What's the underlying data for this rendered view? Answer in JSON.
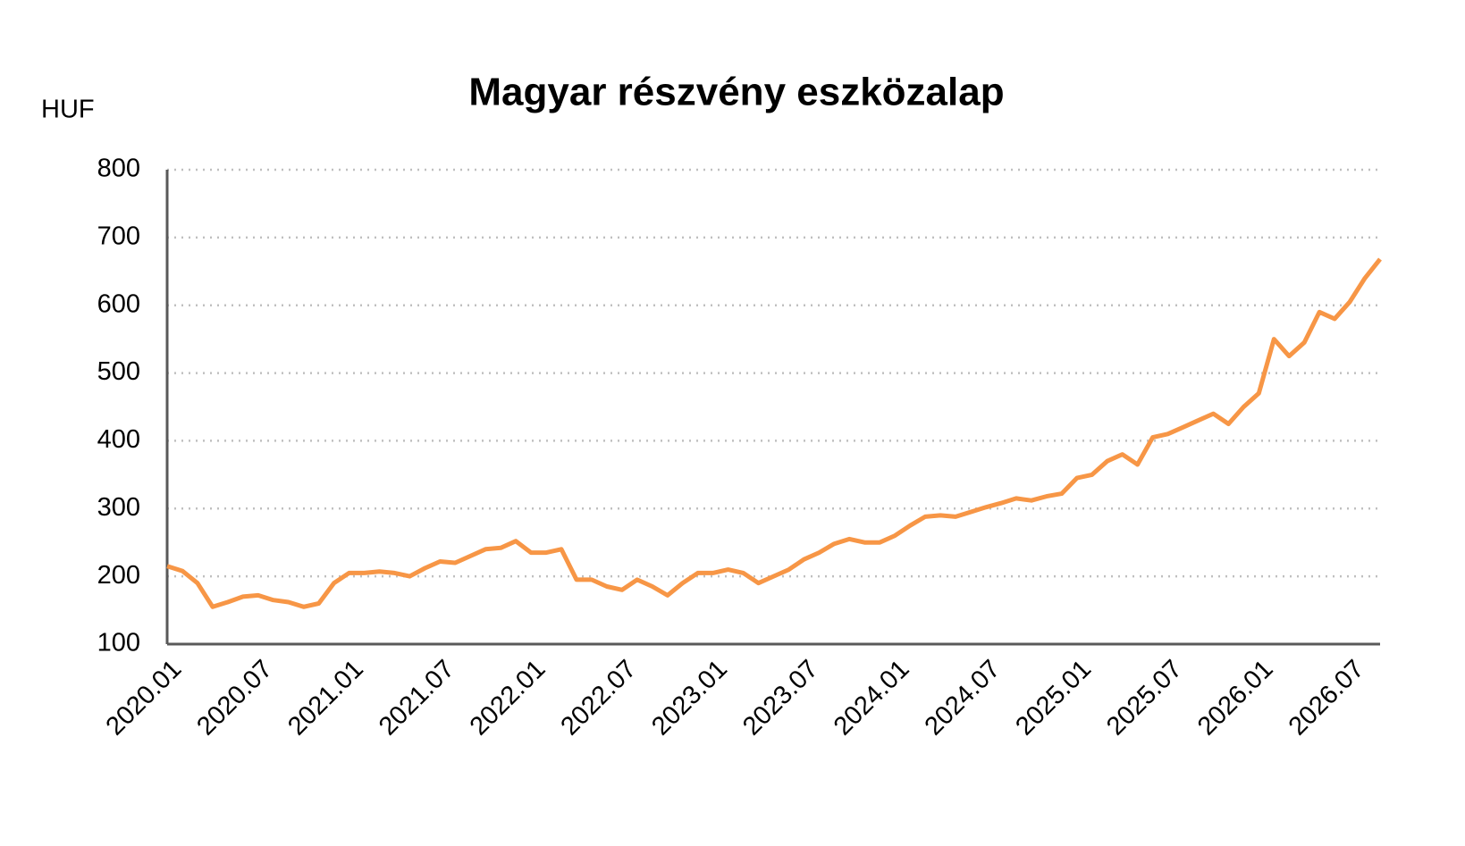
{
  "chart_data": {
    "type": "line",
    "title": "Magyar részvény eszközalap",
    "y_label": "HUF",
    "x": [
      "2020.01",
      "2020.02",
      "2020.03",
      "2020.04",
      "2020.05",
      "2020.06",
      "2020.07",
      "2020.08",
      "2020.09",
      "2020.10",
      "2020.11",
      "2020.12",
      "2021.01",
      "2021.02",
      "2021.03",
      "2021.04",
      "2021.05",
      "2021.06",
      "2021.07",
      "2021.08",
      "2021.09",
      "2021.10",
      "2021.11",
      "2021.12",
      "2022.01",
      "2022.02",
      "2022.03",
      "2022.04",
      "2022.05",
      "2022.06",
      "2022.07",
      "2022.08",
      "2022.09",
      "2022.10",
      "2022.11",
      "2022.12",
      "2023.01",
      "2023.02",
      "2023.03",
      "2023.04",
      "2023.05",
      "2023.06",
      "2023.07",
      "2023.08",
      "2023.09",
      "2023.10",
      "2023.11",
      "2023.12",
      "2024.01",
      "2024.02",
      "2024.03",
      "2024.04",
      "2024.05",
      "2024.06",
      "2024.07",
      "2024.08",
      "2024.09",
      "2024.10",
      "2024.11",
      "2024.12",
      "2025.01",
      "2025.02",
      "2025.03",
      "2025.04",
      "2025.05",
      "2025.06",
      "2025.07",
      "2025.08",
      "2025.09",
      "2025.10",
      "2025.11",
      "2025.12",
      "2026.01",
      "2026.02",
      "2026.03",
      "2026.04",
      "2026.05",
      "2026.06",
      "2026.07",
      "2026.08",
      "2026.09"
    ],
    "series": [
      {
        "name": "Magyar részvény eszközalap",
        "color": "#f79646",
        "values": [
          215,
          208,
          190,
          155,
          162,
          170,
          172,
          165,
          162,
          155,
          160,
          190,
          205,
          205,
          207,
          205,
          200,
          212,
          222,
          220,
          230,
          240,
          242,
          252,
          235,
          235,
          240,
          195,
          195,
          185,
          180,
          195,
          185,
          172,
          190,
          205,
          205,
          210,
          205,
          190,
          200,
          210,
          225,
          235,
          248,
          255,
          250,
          250,
          260,
          275,
          288,
          290,
          288,
          295,
          302,
          308,
          315,
          312,
          318,
          322,
          345,
          350,
          370,
          380,
          365,
          405,
          410,
          420,
          430,
          440,
          425,
          450,
          470,
          550,
          525,
          545,
          590,
          580,
          605,
          640,
          668
        ]
      }
    ],
    "xticks": [
      "2020.01",
      "2020.07",
      "2021.01",
      "2021.07",
      "2022.01",
      "2022.07",
      "2023.01",
      "2023.07",
      "2024.01",
      "2024.07",
      "2025.01",
      "2025.07",
      "2026.01",
      "2026.07"
    ],
    "ylim": [
      100,
      800
    ],
    "yticks": [
      100,
      200,
      300,
      400,
      500,
      600,
      700,
      800
    ],
    "grid": true
  }
}
